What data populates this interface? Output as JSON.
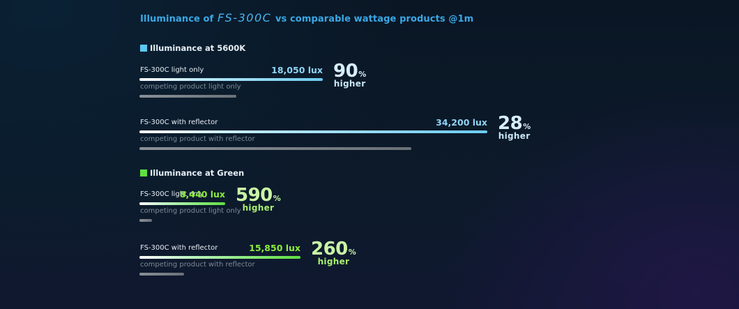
{
  "title": {
    "prefix": "Illuminance of",
    "model": "FS-300C",
    "suffix": "vs comparable wattage products @1m"
  },
  "colors": {
    "accent_blue": "#5cc8f2",
    "accent_green": "#5fe040",
    "competitor_grey": "#7a8088"
  },
  "chart_data": {
    "type": "bar",
    "title": "Illuminance of FS-300C vs comparable wattage products @1m",
    "unit": "lux",
    "groups": [
      {
        "name": "Illuminance at 5600K",
        "color": "#5cc8f2",
        "rows": [
          {
            "label": "FS-300C light only",
            "value": 18050,
            "value_text": "18,050 lux",
            "competitor_label": "competing product light only",
            "competitor_value": 9500,
            "percent": "90",
            "higher_text": "higher"
          },
          {
            "label": "FS-300C with reflector",
            "value": 34200,
            "value_text": "34,200 lux",
            "competitor_label": "competing product with reflector",
            "competitor_value": 26719,
            "percent": "28",
            "higher_text": "higher"
          }
        ]
      },
      {
        "name": "Illuminance at Green",
        "color": "#5fe040",
        "rows": [
          {
            "label": "FS-300C light only",
            "value": 8440,
            "value_text": "8,440 lux",
            "competitor_label": "competing product light only",
            "competitor_value": 1223,
            "percent": "590",
            "higher_text": "higher"
          },
          {
            "label": "FS-300C with reflector",
            "value": 15850,
            "value_text": "15,850 lux",
            "competitor_label": "competing product with reflector",
            "competitor_value": 4403,
            "percent": "260",
            "higher_text": "higher"
          }
        ]
      }
    ]
  }
}
